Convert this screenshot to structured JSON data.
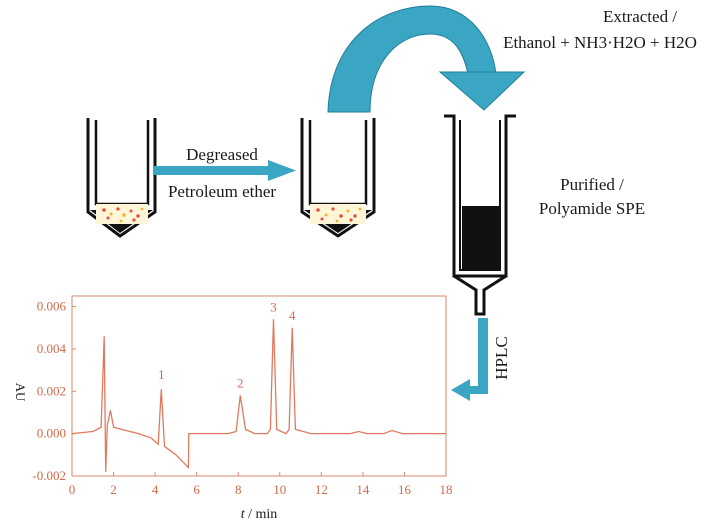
{
  "steps": {
    "degrease_title": "Degreased",
    "degrease_solvent": "Petroleum ether",
    "extract_title": "Extracted /",
    "extract_solvent": "Ethanol + NH3·H2O + H2O",
    "purify_title": "Purified /",
    "purify_method": "Polyamide SPE",
    "analysis": "HPLC"
  },
  "colors": {
    "arrow_blue": "#3aa6c4",
    "arrow_dark": "#1f7f97",
    "chart_line": "#e07a5f",
    "chart_axis": "#d98a6c",
    "sample_dots": "#e94b3c"
  },
  "chart_data": {
    "type": "line",
    "title": "",
    "xlabel": "t / min",
    "ylabel": "AU",
    "xlim": [
      0,
      18
    ],
    "ylim": [
      -0.002,
      0.0065
    ],
    "xticks": [
      "0",
      "2",
      "4",
      "6",
      "8",
      "10",
      "12",
      "14",
      "16",
      "18"
    ],
    "yticks": [
      "0.006",
      "0.004",
      "0.002",
      "0.000",
      "-0.002"
    ],
    "peak_labels": [
      {
        "label": "1",
        "x": 4.3,
        "y": 0.0022
      },
      {
        "label": "2",
        "x": 8.1,
        "y": 0.0018
      },
      {
        "label": "3",
        "x": 9.7,
        "y": 0.0054
      },
      {
        "label": "4",
        "x": 10.6,
        "y": 0.005
      }
    ],
    "series": [
      {
        "values": [
          [
            0,
            0
          ],
          [
            1.0,
            0.0001
          ],
          [
            1.4,
            0.0003
          ],
          [
            1.55,
            0.0046
          ],
          [
            1.62,
            -0.0018
          ],
          [
            1.7,
            0.0004
          ],
          [
            1.85,
            0.0011
          ],
          [
            2.0,
            0.0003
          ],
          [
            2.6,
            0.00015
          ],
          [
            3.2,
            0.0
          ],
          [
            3.8,
            -0.0002
          ],
          [
            4.15,
            -0.0005
          ],
          [
            4.3,
            0.0021
          ],
          [
            4.45,
            -0.0006
          ],
          [
            5.0,
            -0.001
          ],
          [
            5.5,
            -0.0015
          ],
          [
            5.6,
            -0.0016
          ],
          [
            5.62,
            0.0
          ],
          [
            6.5,
            0.0
          ],
          [
            7.5,
            0.0
          ],
          [
            7.9,
            0.0001
          ],
          [
            8.1,
            0.0018
          ],
          [
            8.35,
            0.0002
          ],
          [
            8.8,
            0.0
          ],
          [
            9.4,
            0.0
          ],
          [
            9.55,
            0.0002
          ],
          [
            9.7,
            0.0054
          ],
          [
            9.85,
            0.0002
          ],
          [
            10.3,
            0.0
          ],
          [
            10.45,
            0.0002
          ],
          [
            10.6,
            0.005
          ],
          [
            10.75,
            0.0002
          ],
          [
            11.5,
            0.0
          ],
          [
            12.5,
            0.0
          ],
          [
            13.4,
            0.0
          ],
          [
            13.8,
            0.0001
          ],
          [
            14.2,
            0.0
          ],
          [
            15.0,
            0.0
          ],
          [
            15.4,
            0.00015
          ],
          [
            15.9,
            0.0
          ],
          [
            17,
            0.0
          ],
          [
            18,
            0.0
          ]
        ]
      }
    ]
  }
}
